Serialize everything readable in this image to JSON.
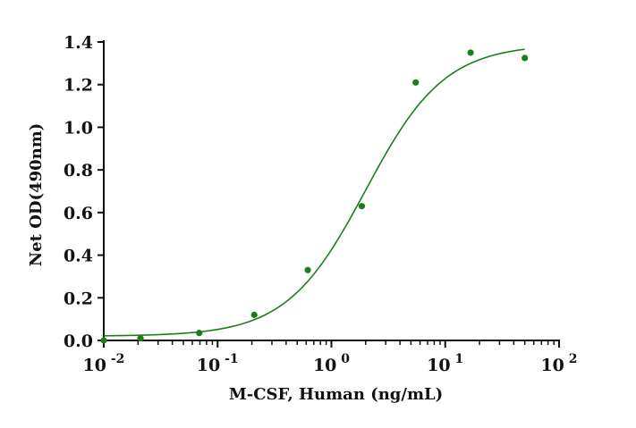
{
  "chart_data": {
    "type": "scatter",
    "title": "",
    "xlabel": "M-CSF, Human (ng/mL)",
    "ylabel": "Net OD(490nm)",
    "x_scale": "log",
    "xlim": [
      0.01,
      100
    ],
    "ylim": [
      0.0,
      1.4
    ],
    "x_ticks": [
      {
        "base": "10",
        "exp": "-2"
      },
      {
        "base": "10",
        "exp": "-1"
      },
      {
        "base": "10",
        "exp": "0"
      },
      {
        "base": "10",
        "exp": "1"
      },
      {
        "base": "10",
        "exp": "2"
      }
    ],
    "y_ticks": [
      "0.0",
      "0.2",
      "0.4",
      "0.6",
      "0.8",
      "1.0",
      "1.2",
      "1.4"
    ],
    "grid": false,
    "legend": "none",
    "series": [
      {
        "color": "#1a7f1a",
        "points": [
          {
            "x": 0.01,
            "y": 0.0
          },
          {
            "x": 0.021,
            "y": 0.01
          },
          {
            "x": 0.069,
            "y": 0.035
          },
          {
            "x": 0.21,
            "y": 0.12
          },
          {
            "x": 0.62,
            "y": 0.33
          },
          {
            "x": 1.85,
            "y": 0.63
          },
          {
            "x": 5.5,
            "y": 1.21
          },
          {
            "x": 16.7,
            "y": 1.35
          },
          {
            "x": 50,
            "y": 1.325
          }
        ],
        "fit": {
          "model": "4PL",
          "bottom": 0.02,
          "top": 1.39,
          "ec50": 2.0,
          "hill": 1.25
        }
      }
    ]
  }
}
